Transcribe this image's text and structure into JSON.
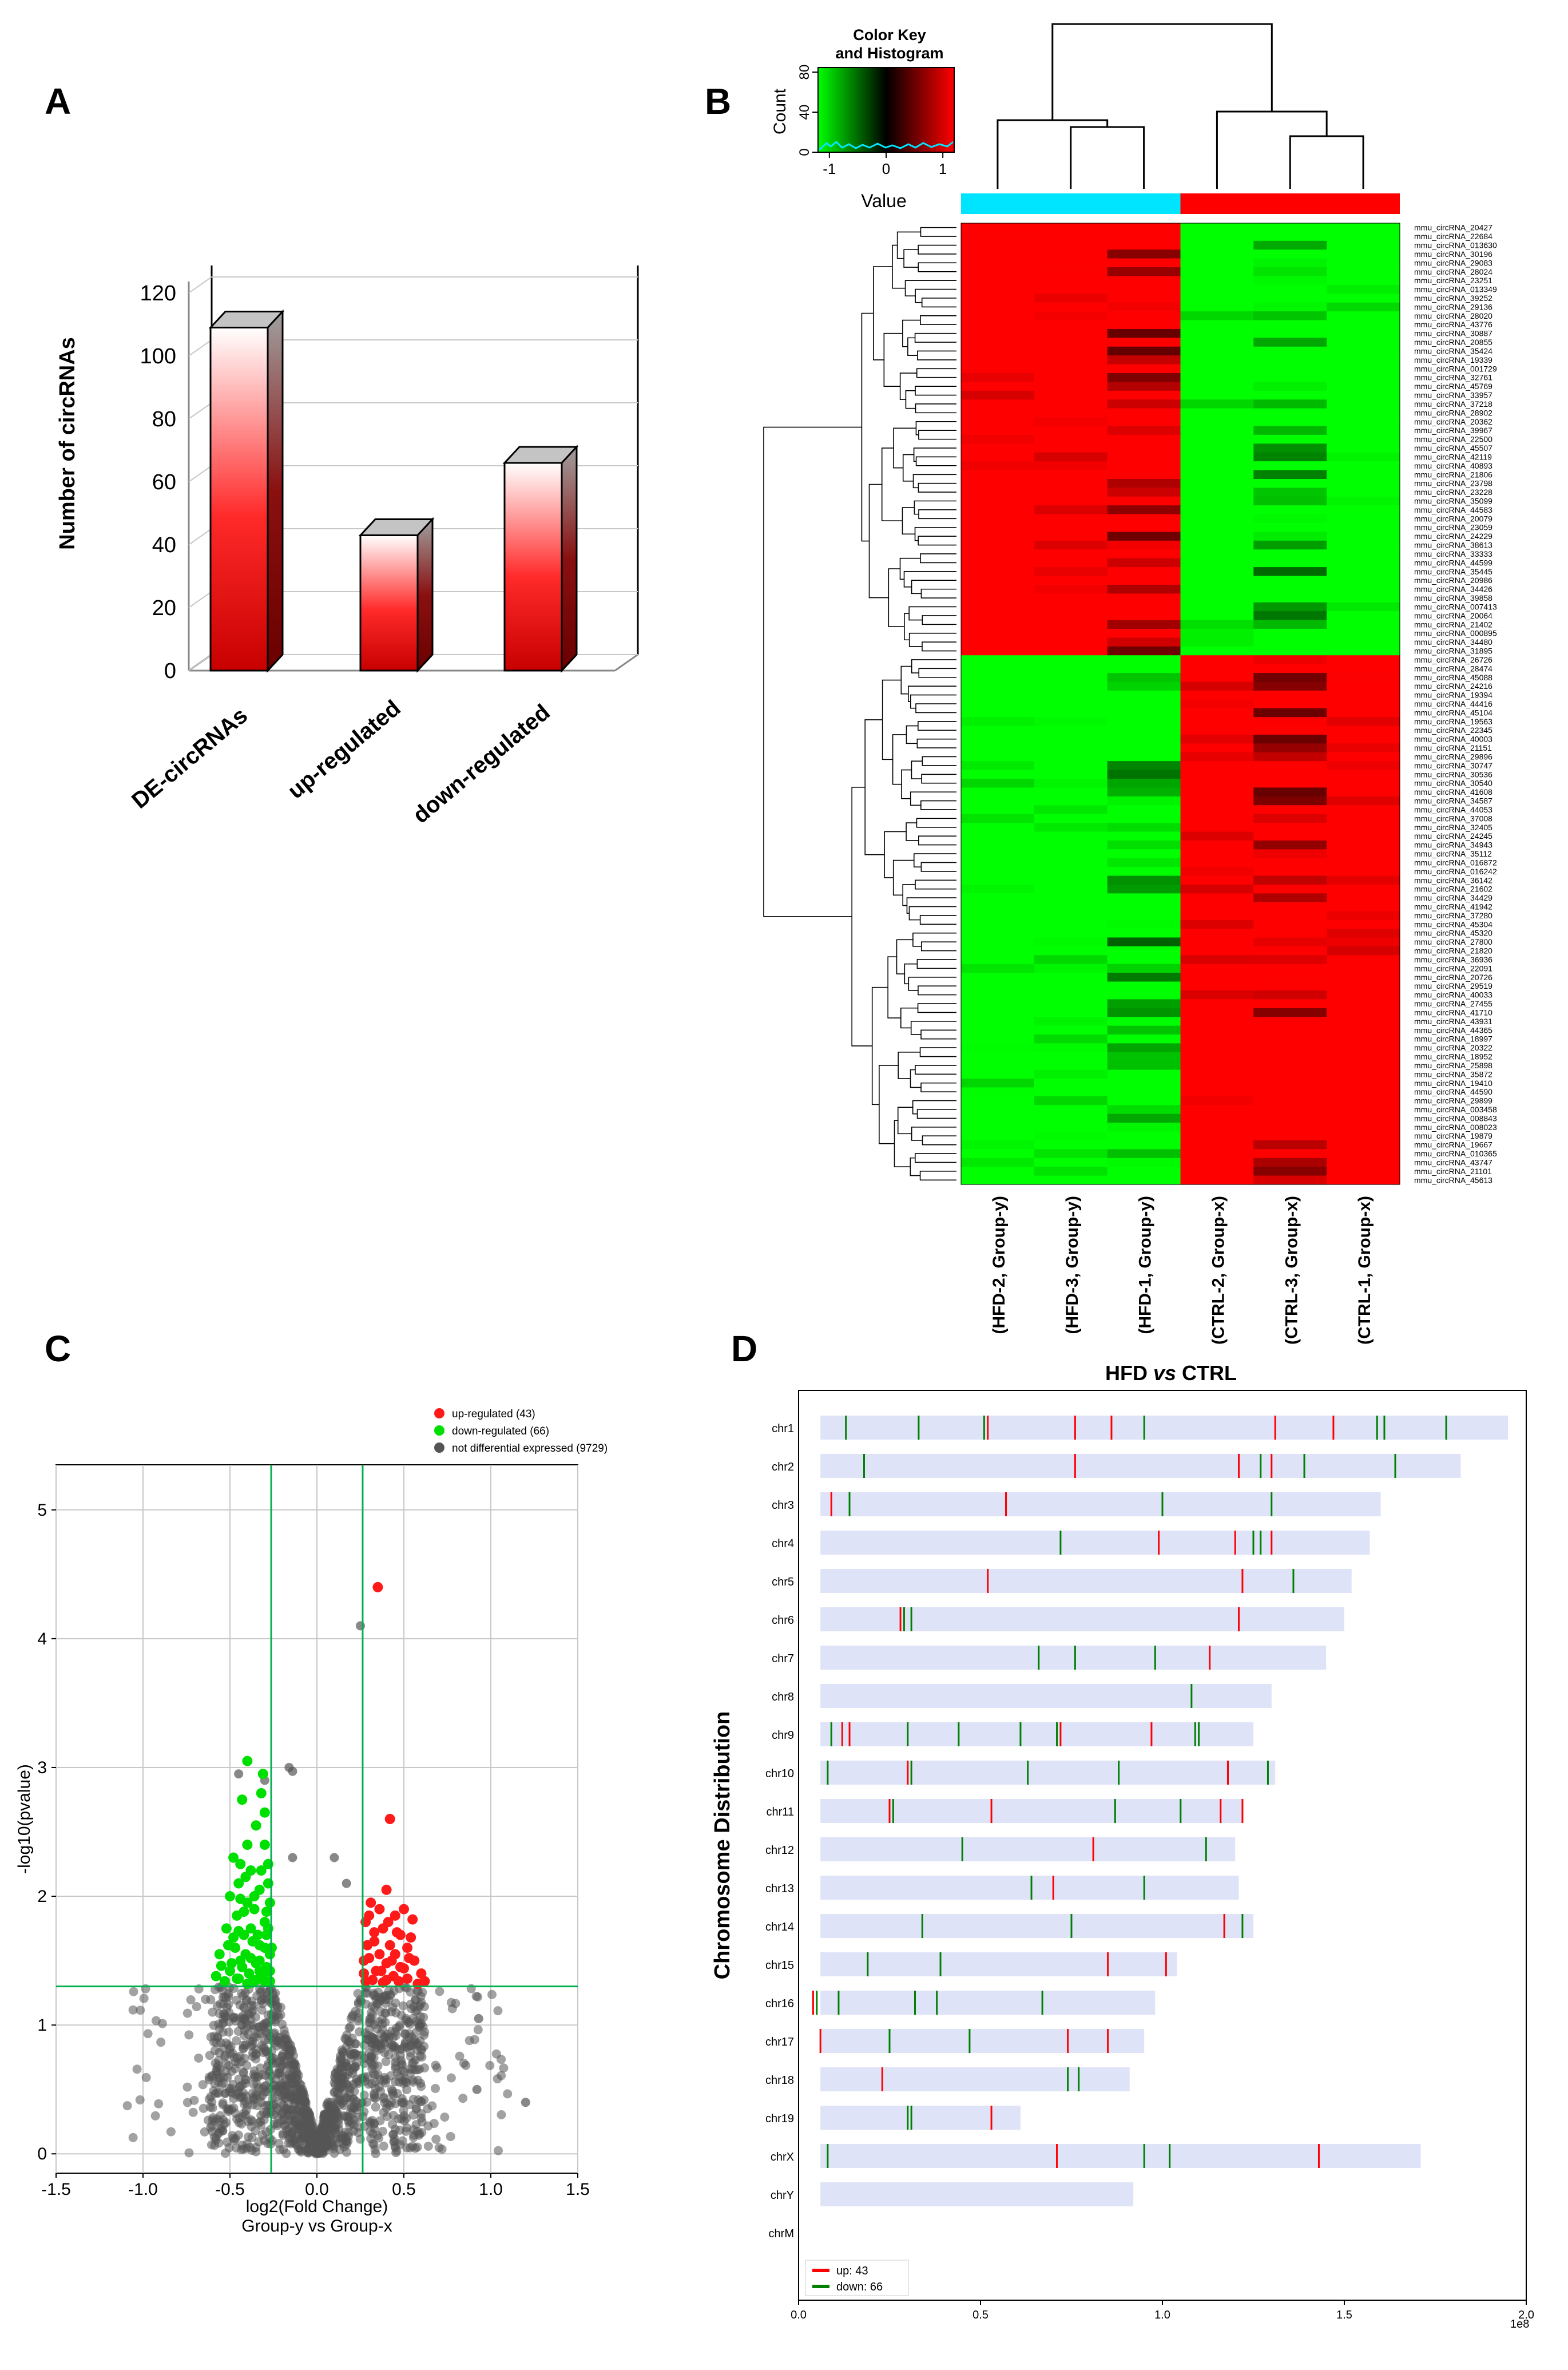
{
  "panels": {
    "A": "A",
    "B": "B",
    "C": "C",
    "D": "D"
  },
  "chart_data": [
    {
      "id": "A",
      "type": "bar",
      "title": "",
      "xlabel": "",
      "ylabel": "Number of circRNAs",
      "ylim": [
        0,
        120
      ],
      "yticks": [
        0,
        20,
        40,
        60,
        80,
        100,
        120
      ],
      "categories": [
        "DE-circRNAs",
        "up-regulated",
        "down-regulated"
      ],
      "values": [
        109,
        43,
        66
      ],
      "grid": true,
      "style": "3d",
      "colors": {
        "bar_top": "#ffffff",
        "bar_bottom": "#d40000",
        "side": "#8a0000"
      }
    },
    {
      "id": "B",
      "type": "heatmap",
      "color_key": {
        "title": "Color Key\nand Histogram",
        "title_line1": "Color Key",
        "title_line2": "and Histogram",
        "value_label": "Value",
        "count_label": "Count",
        "x_ticks": [
          "-1",
          "0",
          "1"
        ],
        "y_ticks": [
          "0",
          "40",
          "80"
        ],
        "range": [
          -1.2,
          1.2
        ],
        "colors": {
          "low": "#00ff00",
          "mid": "#000000",
          "high": "#ff0000"
        }
      },
      "groups": [
        {
          "name": "Group-y",
          "color": "#00e5ff"
        },
        {
          "name": "Group-x",
          "color": "#ff0000"
        }
      ],
      "columns": [
        "(HFD-2, Group-y)",
        "(HFD-3, Group-y)",
        "(HFD-1, Group-y)",
        "(CTRL-2, Group-x)",
        "(CTRL-3, Group-x)",
        "(CTRL-1, Group-x)"
      ],
      "rows": [
        "mmu_circRNA_20427",
        "mmu_circRNA_22684",
        "mmu_circRNA_013630",
        "mmu_circRNA_30196",
        "mmu_circRNA_29083",
        "mmu_circRNA_28024",
        "mmu_circRNA_23251",
        "mmu_circRNA_013349",
        "mmu_circRNA_39252",
        "mmu_circRNA_29136",
        "mmu_circRNA_28020",
        "mmu_circRNA_43776",
        "mmu_circRNA_30887",
        "mmu_circRNA_20855",
        "mmu_circRNA_35424",
        "mmu_circRNA_19339",
        "mmu_circRNA_001729",
        "mmu_circRNA_32761",
        "mmu_circRNA_45769",
        "mmu_circRNA_33957",
        "mmu_circRNA_37218",
        "mmu_circRNA_28902",
        "mmu_circRNA_20362",
        "mmu_circRNA_39967",
        "mmu_circRNA_22500",
        "mmu_circRNA_45507",
        "mmu_circRNA_42119",
        "mmu_circRNA_40893",
        "mmu_circRNA_21806",
        "mmu_circRNA_23798",
        "mmu_circRNA_23228",
        "mmu_circRNA_35099",
        "mmu_circRNA_44583",
        "mmu_circRNA_20079",
        "mmu_circRNA_23059",
        "mmu_circRNA_24229",
        "mmu_circRNA_38613",
        "mmu_circRNA_33333",
        "mmu_circRNA_44599",
        "mmu_circRNA_35445",
        "mmu_circRNA_20986",
        "mmu_circRNA_34426",
        "mmu_circRNA_39858",
        "mmu_circRNA_007413",
        "mmu_circRNA_20064",
        "mmu_circRNA_21402",
        "mmu_circRNA_000895",
        "mmu_circRNA_34480",
        "mmu_circRNA_31895",
        "mmu_circRNA_26726",
        "mmu_circRNA_28474",
        "mmu_circRNA_45088",
        "mmu_circRNA_24216",
        "mmu_circRNA_19394",
        "mmu_circRNA_44416",
        "mmu_circRNA_45104",
        "mmu_circRNA_19563",
        "mmu_circRNA_22345",
        "mmu_circRNA_40003",
        "mmu_circRNA_21151",
        "mmu_circRNA_29896",
        "mmu_circRNA_30747",
        "mmu_circRNA_30536",
        "mmu_circRNA_30540",
        "mmu_circRNA_41608",
        "mmu_circRNA_34587",
        "mmu_circRNA_44053",
        "mmu_circRNA_37008",
        "mmu_circRNA_32405",
        "mmu_circRNA_24245",
        "mmu_circRNA_34943",
        "mmu_circRNA_35112",
        "mmu_circRNA_016872",
        "mmu_circRNA_016242",
        "mmu_circRNA_36142",
        "mmu_circRNA_21602",
        "mmu_circRNA_34429",
        "mmu_circRNA_41942",
        "mmu_circRNA_37280",
        "mmu_circRNA_45304",
        "mmu_circRNA_45320",
        "mmu_circRNA_27800",
        "mmu_circRNA_21820",
        "mmu_circRNA_36936",
        "mmu_circRNA_22091",
        "mmu_circRNA_20726",
        "mmu_circRNA_29519",
        "mmu_circRNA_40033",
        "mmu_circRNA_27455",
        "mmu_circRNA_41710",
        "mmu_circRNA_43931",
        "mmu_circRNA_44365",
        "mmu_circRNA_18997",
        "mmu_circRNA_20322",
        "mmu_circRNA_18952",
        "mmu_circRNA_25898",
        "mmu_circRNA_35872",
        "mmu_circRNA_19410",
        "mmu_circRNA_44590",
        "mmu_circRNA_29899",
        "mmu_circRNA_003458",
        "mmu_circRNA_008843",
        "mmu_circRNA_008023",
        "mmu_circRNA_19879",
        "mmu_circRNA_19667",
        "mmu_circRNA_010365",
        "mmu_circRNA_43747",
        "mmu_circRNA_21101",
        "mmu_circRNA_45613"
      ],
      "n_upper_cluster": 49
    },
    {
      "id": "C",
      "type": "scatter",
      "title": "",
      "xlabel": "log2(Fold Change)",
      "xlabel2": "Group-y vs Group-x",
      "ylabel": "-log10(pvalue)",
      "xlim": [
        -1.5,
        1.5
      ],
      "ylim": [
        -0.15,
        5.35
      ],
      "xticks": [
        "-1.5",
        "-1.0",
        "-0.5",
        "0.0",
        "0.5",
        "1.0",
        "1.5"
      ],
      "yticks": [
        "0",
        "1",
        "2",
        "3",
        "4",
        "5"
      ],
      "thresholds": {
        "fc_low": -0.263,
        "fc_high": 0.263,
        "p": 1.3
      },
      "legend": [
        {
          "label": "up-regulated (43)",
          "color": "#ff1a1a"
        },
        {
          "label": "down-regulated (66)",
          "color": "#00e000"
        },
        {
          "label": "not differential expressed (9729)",
          "color": "#555555"
        }
      ],
      "series": [
        {
          "name": "up-regulated",
          "count": 43,
          "color": "#ff1a1a",
          "points": [
            [
              0.35,
              4.4
            ],
            [
              0.42,
              2.6
            ],
            [
              0.4,
              2.05
            ],
            [
              0.5,
              1.9
            ],
            [
              0.45,
              1.85
            ],
            [
              0.55,
              1.82
            ],
            [
              0.3,
              1.85
            ],
            [
              0.38,
              1.75
            ],
            [
              0.48,
              1.7
            ],
            [
              0.33,
              1.65
            ],
            [
              0.42,
              1.62
            ],
            [
              0.52,
              1.6
            ],
            [
              0.36,
              1.55
            ],
            [
              0.45,
              1.55
            ],
            [
              0.3,
              1.52
            ],
            [
              0.56,
              1.5
            ],
            [
              0.4,
              1.48
            ],
            [
              0.48,
              1.45
            ],
            [
              0.34,
              1.42
            ],
            [
              0.6,
              1.4
            ],
            [
              0.44,
              1.38
            ],
            [
              0.52,
              1.36
            ],
            [
              0.32,
              1.35
            ],
            [
              0.38,
              1.33
            ],
            [
              0.58,
              1.32
            ],
            [
              0.28,
              1.8
            ],
            [
              0.27,
              1.5
            ],
            [
              0.27,
              1.4
            ],
            [
              0.31,
              1.95
            ],
            [
              0.46,
              1.72
            ],
            [
              0.5,
              1.44
            ],
            [
              0.36,
              1.9
            ],
            [
              0.54,
              1.68
            ],
            [
              0.4,
              1.35
            ],
            [
              0.29,
              1.62
            ],
            [
              0.62,
              1.34
            ],
            [
              0.47,
              1.34
            ],
            [
              0.37,
              1.42
            ],
            [
              0.43,
              1.5
            ],
            [
              0.33,
              1.72
            ],
            [
              0.28,
              1.34
            ],
            [
              0.53,
              1.52
            ],
            [
              0.41,
              1.8
            ]
          ]
        },
        {
          "name": "down-regulated",
          "count": 66,
          "color": "#00e000",
          "points": [
            [
              -0.4,
              3.05
            ],
            [
              -0.32,
              2.8
            ],
            [
              -0.3,
              2.65
            ],
            [
              -0.43,
              2.75
            ],
            [
              -0.48,
              2.3
            ],
            [
              -0.35,
              2.55
            ],
            [
              -0.44,
              2.25
            ],
            [
              -0.38,
              2.2
            ],
            [
              -0.3,
              2.4
            ],
            [
              -0.45,
              2.1
            ],
            [
              -0.28,
              2.25
            ],
            [
              -0.33,
              2.05
            ],
            [
              -0.5,
              2.0
            ],
            [
              -0.4,
              1.95
            ],
            [
              -0.36,
              1.9
            ],
            [
              -0.27,
              1.95
            ],
            [
              -0.46,
              1.85
            ],
            [
              -0.3,
              1.8
            ],
            [
              -0.52,
              1.75
            ],
            [
              -0.38,
              1.75
            ],
            [
              -0.29,
              1.7
            ],
            [
              -0.42,
              1.7
            ],
            [
              -0.47,
              1.6
            ],
            [
              -0.33,
              1.62
            ],
            [
              -0.27,
              1.55
            ],
            [
              -0.56,
              1.55
            ],
            [
              -0.44,
              1.5
            ],
            [
              -0.35,
              1.48
            ],
            [
              -0.29,
              1.45
            ],
            [
              -0.5,
              1.42
            ],
            [
              -0.39,
              1.4
            ],
            [
              -0.31,
              1.38
            ],
            [
              -0.45,
              1.36
            ],
            [
              -0.27,
              1.34
            ],
            [
              -0.53,
              1.34
            ],
            [
              -0.37,
              1.33
            ],
            [
              -0.41,
              1.55
            ],
            [
              -0.34,
              1.7
            ],
            [
              -0.28,
              2.1
            ],
            [
              -0.31,
              2.95
            ],
            [
              -0.48,
              1.68
            ],
            [
              -0.43,
              1.45
            ],
            [
              -0.36,
              2.0
            ],
            [
              -0.4,
              2.4
            ],
            [
              -0.3,
              1.6
            ],
            [
              -0.46,
              1.36
            ],
            [
              -0.33,
              1.5
            ],
            [
              -0.27,
              1.42
            ],
            [
              -0.58,
              1.38
            ],
            [
              -0.42,
              1.88
            ],
            [
              -0.35,
              1.35
            ],
            [
              -0.51,
              1.62
            ],
            [
              -0.29,
              1.88
            ],
            [
              -0.38,
              1.52
            ],
            [
              -0.44,
              1.98
            ],
            [
              -0.32,
              2.2
            ],
            [
              -0.49,
              1.48
            ],
            [
              -0.26,
              1.6
            ],
            [
              -0.4,
              1.32
            ],
            [
              -0.55,
              1.46
            ],
            [
              -0.37,
              1.65
            ],
            [
              -0.3,
              1.34
            ],
            [
              -0.45,
              1.73
            ],
            [
              -0.33,
              1.42
            ],
            [
              -0.28,
              1.75
            ],
            [
              -0.41,
              2.15
            ]
          ]
        },
        {
          "name": "not differential expressed",
          "count": 9729,
          "color": "#555555",
          "representation": "sampled"
        }
      ]
    },
    {
      "id": "D",
      "type": "chromosome",
      "title": "HFD vs CTRL",
      "title_a": "HFD ",
      "title_b": "vs",
      "title_c": " CTRL",
      "ylabel": "Chromosome Distribution",
      "xlim": [
        0,
        2.0
      ],
      "xticks": [
        "0.0",
        "0.5",
        "1.0",
        "1.5",
        "2.0"
      ],
      "x_multiplier": "1e8",
      "legend": [
        {
          "label": "up: 43",
          "color": "#ff0000"
        },
        {
          "label": "down: 66",
          "color": "#008000"
        }
      ],
      "chromosomes": [
        {
          "name": "chr1",
          "length": 1.95,
          "up": [
            0.52,
            0.76,
            0.86,
            1.31,
            1.47
          ],
          "down": [
            0.13,
            0.33,
            0.51,
            0.95,
            1.59,
            1.61,
            1.78
          ]
        },
        {
          "name": "chr2",
          "length": 1.82,
          "up": [
            0.76,
            1.21,
            1.3
          ],
          "down": [
            0.18,
            1.27,
            1.39,
            1.64
          ]
        },
        {
          "name": "chr3",
          "length": 1.6,
          "up": [
            0.09,
            0.57
          ],
          "down": [
            0.14,
            1.0,
            1.3
          ]
        },
        {
          "name": "chr4",
          "length": 1.57,
          "up": [
            0.99,
            1.2,
            1.3
          ],
          "down": [
            0.72,
            1.25,
            1.27
          ]
        },
        {
          "name": "chr5",
          "length": 1.52,
          "up": [
            0.52,
            1.22
          ],
          "down": [
            1.36
          ]
        },
        {
          "name": "chr6",
          "length": 1.5,
          "up": [
            0.28,
            1.21
          ],
          "down": [
            0.29,
            0.31
          ]
        },
        {
          "name": "chr7",
          "length": 1.45,
          "up": [
            1.13
          ],
          "down": [
            0.66,
            0.76,
            0.98
          ]
        },
        {
          "name": "chr8",
          "length": 1.3,
          "up": [],
          "down": [
            1.08
          ]
        },
        {
          "name": "chr9",
          "length": 1.25,
          "up": [
            0.12,
            0.14,
            0.72,
            0.97
          ],
          "down": [
            0.09,
            0.3,
            0.44,
            0.61,
            0.71,
            1.09,
            1.1
          ]
        },
        {
          "name": "chr10",
          "length": 1.31,
          "up": [
            0.3,
            1.18
          ],
          "down": [
            0.08,
            0.31,
            0.63,
            0.88,
            1.29
          ]
        },
        {
          "name": "chr11",
          "length": 1.22,
          "up": [
            0.25,
            0.53,
            1.16,
            1.22
          ],
          "down": [
            0.26,
            0.87,
            1.05
          ]
        },
        {
          "name": "chr12",
          "length": 1.2,
          "up": [
            0.81
          ],
          "down": [
            0.45,
            1.12
          ]
        },
        {
          "name": "chr13",
          "length": 1.21,
          "up": [
            0.7
          ],
          "down": [
            0.64,
            0.95
          ]
        },
        {
          "name": "chr14",
          "length": 1.25,
          "up": [
            1.17
          ],
          "down": [
            0.34,
            0.75,
            1.22
          ]
        },
        {
          "name": "chr15",
          "length": 1.04,
          "up": [
            0.85,
            1.01
          ],
          "down": [
            0.19,
            0.39
          ]
        },
        {
          "name": "chr16",
          "length": 0.98,
          "up": [
            0.04
          ],
          "down": [
            0.05,
            0.11,
            0.32,
            0.38,
            0.67
          ]
        },
        {
          "name": "chr17",
          "length": 0.95,
          "up": [
            0.06,
            0.74,
            0.85
          ],
          "down": [
            0.25,
            0.47
          ]
        },
        {
          "name": "chr18",
          "length": 0.91,
          "up": [
            0.23
          ],
          "down": [
            0.74,
            0.77
          ]
        },
        {
          "name": "chr19",
          "length": 0.61,
          "up": [
            0.53
          ],
          "down": [
            0.3,
            0.31
          ]
        },
        {
          "name": "chrX",
          "length": 1.71,
          "up": [
            0.71,
            1.43
          ],
          "down": [
            0.08,
            0.95,
            1.02
          ]
        },
        {
          "name": "chrY",
          "length": 0.92,
          "up": [],
          "down": []
        },
        {
          "name": "chrM",
          "length": 0,
          "up": [],
          "down": []
        }
      ]
    }
  ]
}
